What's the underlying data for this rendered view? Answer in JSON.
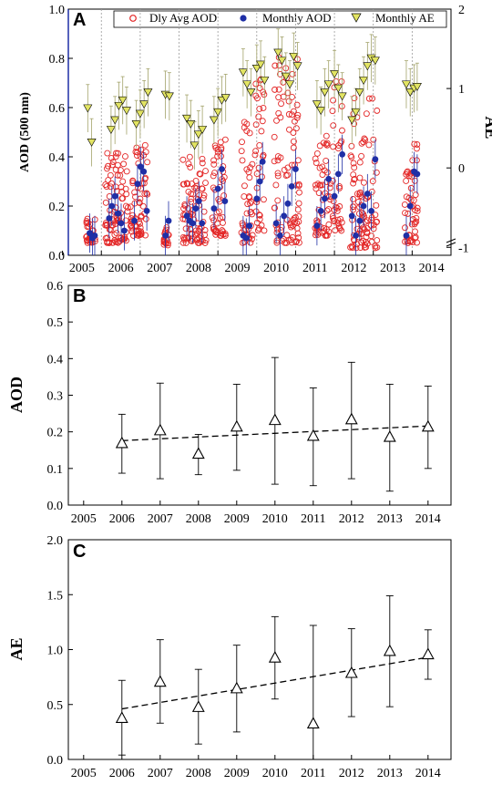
{
  "chart_data": [
    {
      "panel": "A",
      "type": "scatter",
      "xlabel": "",
      "ylabel": "AOD (500 nm)",
      "ylabel_right": "AE",
      "x_ticks": [
        "2005",
        "2006",
        "2007",
        "2008",
        "2009",
        "2010",
        "2011",
        "2012",
        "2013",
        "2014"
      ],
      "y_ticks": [
        "0.0",
        "0.2",
        "0.4",
        "0.6",
        "0.8",
        "1.0"
      ],
      "y_right_ticks": [
        "-1",
        "0",
        "1",
        "2"
      ],
      "ylim": [
        0,
        1.0
      ],
      "ylim_right": [
        -1.1,
        2
      ],
      "xlim": [
        2005.0,
        2014.85
      ],
      "legend_position": "top",
      "legend": [
        "Dly Avg AOD",
        "Monthly AOD",
        "Monthly AE"
      ],
      "series": [
        {
          "name": "Dly Avg AOD",
          "marker": "open-circle",
          "color": "#e32626",
          "clusters": [
            {
              "start": 2005.45,
              "end": 2005.7,
              "min": 0.05,
              "max": 0.15
            },
            {
              "start": 2005.95,
              "end": 2006.55,
              "min": 0.05,
              "max": 0.42
            },
            {
              "start": 2006.6,
              "end": 2007.05,
              "min": 0.08,
              "max": 0.45
            },
            {
              "start": 2007.45,
              "end": 2007.6,
              "min": 0.04,
              "max": 0.12
            },
            {
              "start": 2007.95,
              "end": 2008.55,
              "min": 0.05,
              "max": 0.4
            },
            {
              "start": 2008.7,
              "end": 2009.05,
              "min": 0.08,
              "max": 0.48
            },
            {
              "start": 2009.45,
              "end": 2009.75,
              "min": 0.05,
              "max": 0.55
            },
            {
              "start": 2009.8,
              "end": 2010.05,
              "min": 0.1,
              "max": 0.78
            },
            {
              "start": 2010.3,
              "end": 2010.95,
              "min": 0.05,
              "max": 0.85
            },
            {
              "start": 2011.35,
              "end": 2011.75,
              "min": 0.08,
              "max": 0.5
            },
            {
              "start": 2011.8,
              "end": 2012.05,
              "min": 0.1,
              "max": 0.75
            },
            {
              "start": 2012.25,
              "end": 2012.95,
              "min": 0.03,
              "max": 0.65
            },
            {
              "start": 2013.65,
              "end": 2014.0,
              "min": 0.05,
              "max": 0.47
            }
          ]
        },
        {
          "name": "Monthly AOD",
          "marker": "filled-circle",
          "color": "#1f2fa6",
          "points": [
            [
              2005.55,
              0.09
            ],
            [
              2005.62,
              0.07
            ],
            [
              2005.68,
              0.08
            ],
            [
              2006.05,
              0.15
            ],
            [
              2006.12,
              0.2
            ],
            [
              2006.2,
              0.24
            ],
            [
              2006.28,
              0.17
            ],
            [
              2006.36,
              0.13
            ],
            [
              2006.44,
              0.1
            ],
            [
              2006.7,
              0.14
            ],
            [
              2006.78,
              0.29
            ],
            [
              2006.86,
              0.36
            ],
            [
              2006.94,
              0.34
            ],
            [
              2007.02,
              0.18
            ],
            [
              2007.5,
              0.08
            ],
            [
              2007.58,
              0.14
            ],
            [
              2008.05,
              0.16
            ],
            [
              2008.12,
              0.14
            ],
            [
              2008.2,
              0.13
            ],
            [
              2008.28,
              0.19
            ],
            [
              2008.36,
              0.22
            ],
            [
              2008.44,
              0.13
            ],
            [
              2008.75,
              0.19
            ],
            [
              2008.85,
              0.27
            ],
            [
              2008.95,
              0.35
            ],
            [
              2009.03,
              0.22
            ],
            [
              2009.5,
              0.08
            ],
            [
              2009.58,
              0.07
            ],
            [
              2009.66,
              0.12
            ],
            [
              2009.85,
              0.23
            ],
            [
              2009.93,
              0.3
            ],
            [
              2010.0,
              0.38
            ],
            [
              2010.35,
              0.13
            ],
            [
              2010.45,
              0.08
            ],
            [
              2010.55,
              0.16
            ],
            [
              2010.65,
              0.21
            ],
            [
              2010.75,
              0.28
            ],
            [
              2010.85,
              0.35
            ],
            [
              2011.4,
              0.12
            ],
            [
              2011.5,
              0.18
            ],
            [
              2011.6,
              0.23
            ],
            [
              2011.7,
              0.31
            ],
            [
              2011.85,
              0.24
            ],
            [
              2011.95,
              0.33
            ],
            [
              2012.05,
              0.41
            ],
            [
              2012.3,
              0.16
            ],
            [
              2012.4,
              0.08
            ],
            [
              2012.5,
              0.14
            ],
            [
              2012.6,
              0.2
            ],
            [
              2012.7,
              0.25
            ],
            [
              2012.8,
              0.18
            ],
            [
              2012.9,
              0.39
            ],
            [
              2013.7,
              0.08
            ],
            [
              2013.8,
              0.2
            ],
            [
              2013.9,
              0.34
            ],
            [
              2013.98,
              0.33
            ]
          ]
        },
        {
          "name": "Monthly AE",
          "marker": "filled-down-triangle",
          "color": "#e2e463",
          "points": [
            [
              2005.5,
              0.75
            ],
            [
              2005.6,
              0.32
            ],
            [
              2006.1,
              0.48
            ],
            [
              2006.2,
              0.6
            ],
            [
              2006.3,
              0.78
            ],
            [
              2006.4,
              0.85
            ],
            [
              2006.5,
              0.72
            ],
            [
              2006.75,
              0.55
            ],
            [
              2006.85,
              0.68
            ],
            [
              2006.95,
              0.8
            ],
            [
              2007.05,
              0.95
            ],
            [
              2007.5,
              0.92
            ],
            [
              2007.6,
              0.9
            ],
            [
              2008.05,
              0.62
            ],
            [
              2008.15,
              0.55
            ],
            [
              2008.25,
              0.28
            ],
            [
              2008.35,
              0.42
            ],
            [
              2008.45,
              0.48
            ],
            [
              2008.75,
              0.6
            ],
            [
              2008.85,
              0.7
            ],
            [
              2008.95,
              0.85
            ],
            [
              2009.05,
              0.88
            ],
            [
              2009.5,
              1.2
            ],
            [
              2009.6,
              1.05
            ],
            [
              2009.7,
              0.95
            ],
            [
              2009.85,
              1.25
            ],
            [
              2009.95,
              1.3
            ],
            [
              2010.05,
              1.1
            ],
            [
              2010.4,
              1.45
            ],
            [
              2010.5,
              1.35
            ],
            [
              2010.6,
              1.15
            ],
            [
              2010.7,
              1.05
            ],
            [
              2010.8,
              1.4
            ],
            [
              2010.9,
              1.28
            ],
            [
              2011.4,
              0.8
            ],
            [
              2011.5,
              0.72
            ],
            [
              2011.6,
              0.95
            ],
            [
              2011.7,
              1.05
            ],
            [
              2011.85,
              1.18
            ],
            [
              2011.95,
              1.0
            ],
            [
              2012.05,
              0.9
            ],
            [
              2012.3,
              0.6
            ],
            [
              2012.4,
              0.7
            ],
            [
              2012.5,
              0.95
            ],
            [
              2012.6,
              1.1
            ],
            [
              2012.7,
              1.28
            ],
            [
              2012.8,
              1.38
            ],
            [
              2012.9,
              1.35
            ],
            [
              2013.7,
              1.05
            ],
            [
              2013.8,
              0.95
            ],
            [
              2013.9,
              1.0
            ],
            [
              2013.98,
              1.02
            ]
          ]
        }
      ]
    },
    {
      "panel": "B",
      "type": "scatter",
      "xlabel": "",
      "ylabel": "AOD",
      "x_ticks": [
        "2005",
        "2006",
        "2007",
        "2008",
        "2009",
        "2010",
        "2011",
        "2012",
        "2013",
        "2014"
      ],
      "y_ticks": [
        "0.0",
        "0.1",
        "0.2",
        "0.3",
        "0.4",
        "0.5",
        "0.6"
      ],
      "ylim": [
        0,
        0.6
      ],
      "xlim": [
        2004.6,
        2014.6
      ],
      "marker": "open-triangle",
      "x": [
        2006,
        2007,
        2008,
        2009,
        2010,
        2011,
        2012,
        2013,
        2014
      ],
      "values": [
        0.167,
        0.202,
        0.138,
        0.212,
        0.23,
        0.187,
        0.232,
        0.184,
        0.212
      ],
      "err_low": [
        0.087,
        0.072,
        0.083,
        0.095,
        0.057,
        0.053,
        0.072,
        0.038,
        0.1
      ],
      "err_high": [
        0.248,
        0.333,
        0.193,
        0.33,
        0.403,
        0.32,
        0.39,
        0.33,
        0.325
      ],
      "trend": [
        [
          2006,
          0.176
        ],
        [
          2014,
          0.216
        ]
      ]
    },
    {
      "panel": "C",
      "type": "scatter",
      "xlabel": "",
      "ylabel": "AE",
      "x_ticks": [
        "2005",
        "2006",
        "2007",
        "2008",
        "2009",
        "2010",
        "2011",
        "2012",
        "2013",
        "2014"
      ],
      "y_ticks": [
        "0.0",
        "0.5",
        "1.0",
        "1.5",
        "2.0"
      ],
      "ylim": [
        0,
        2.0
      ],
      "xlim": [
        2004.6,
        2014.6
      ],
      "marker": "open-triangle",
      "x": [
        2006,
        2007,
        2008,
        2009,
        2010,
        2011,
        2012,
        2013,
        2014
      ],
      "values": [
        0.37,
        0.7,
        0.47,
        0.64,
        0.92,
        0.32,
        0.78,
        0.98,
        0.95
      ],
      "err_low": [
        0.04,
        0.33,
        0.14,
        0.25,
        0.55,
        0.0,
        0.39,
        0.48,
        0.73
      ],
      "err_high": [
        0.72,
        1.09,
        0.82,
        1.04,
        1.3,
        1.22,
        1.19,
        1.49,
        1.18
      ],
      "trend": [
        [
          2006,
          0.46
        ],
        [
          2014,
          0.93
        ]
      ]
    }
  ]
}
